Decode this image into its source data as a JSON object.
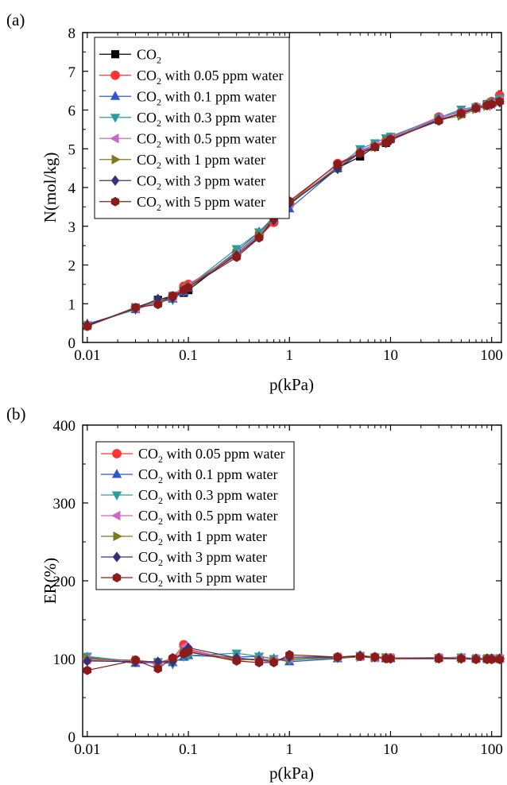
{
  "chart_data": [
    {
      "panel": "(a)",
      "type": "scatter",
      "x_scale": "log",
      "xlabel": "p(kPa)",
      "ylabel": "N(mol/kg)",
      "xlim": [
        0.009,
        125
      ],
      "ylim": [
        0,
        8
      ],
      "x_ticks": [
        0.01,
        0.1,
        1,
        10,
        100
      ],
      "x_tick_labels": [
        "0.01",
        "0.1",
        "1",
        "10",
        "100"
      ],
      "y_ticks": [
        0,
        1,
        2,
        3,
        4,
        5,
        6,
        7,
        8
      ],
      "y_tick_labels": [
        "0",
        "1",
        "2",
        "3",
        "4",
        "5",
        "6",
        "7",
        "8"
      ],
      "legend_position": "top-left",
      "series": [
        {
          "name": "CO2",
          "name_parts": [
            "CO",
            "2",
            " "
          ],
          "marker": "square",
          "color": "#000000",
          "x": [
            0.01,
            0.03,
            0.05,
            0.07,
            0.09,
            0.1,
            0.3,
            0.5,
            0.7,
            1,
            3,
            5,
            7,
            9,
            10,
            30,
            50,
            70,
            90,
            100,
            120
          ],
          "y": [
            0.43,
            0.9,
            1.1,
            1.2,
            1.28,
            1.35,
            2.3,
            2.75,
            3.15,
            3.6,
            4.5,
            4.8,
            5.05,
            5.15,
            5.25,
            5.75,
            5.9,
            6.05,
            6.15,
            6.2,
            6.25
          ]
        },
        {
          "name": "CO2 with 0.05 ppm water",
          "name_parts": [
            "CO",
            "2",
            " with 0.05 ppm water"
          ],
          "marker": "circle",
          "color": "#ff3333",
          "x": [
            0.01,
            0.03,
            0.05,
            0.07,
            0.09,
            0.1,
            0.3,
            0.5,
            0.7,
            1,
            3,
            5,
            7,
            9,
            10,
            30,
            50,
            70,
            90,
            100,
            120
          ],
          "y": [
            0.42,
            0.88,
            1.05,
            1.2,
            1.45,
            1.5,
            2.25,
            2.72,
            3.1,
            3.6,
            4.62,
            4.9,
            5.1,
            5.2,
            5.3,
            5.82,
            5.95,
            6.08,
            6.15,
            6.22,
            6.38
          ]
        },
        {
          "name": "CO2 with 0.1 ppm water",
          "name_parts": [
            "CO",
            "2",
            " with 0.1 ppm water"
          ],
          "marker": "triangle-up",
          "color": "#3355cc",
          "x": [
            0.01,
            0.03,
            0.05,
            0.07,
            0.09,
            0.1,
            0.3,
            0.5,
            0.7,
            1,
            3,
            5,
            7,
            9,
            10,
            30,
            50,
            70,
            90,
            100,
            120
          ],
          "y": [
            0.48,
            0.85,
            1.05,
            1.12,
            1.3,
            1.4,
            2.35,
            2.85,
            3.2,
            3.45,
            4.5,
            4.95,
            5.1,
            5.2,
            5.28,
            5.78,
            5.98,
            6.05,
            6.12,
            6.18,
            6.25
          ]
        },
        {
          "name": "CO2 with 0.3 ppm water",
          "name_parts": [
            "CO",
            "2",
            " with 0.3 ppm water"
          ],
          "marker": "triangle-down",
          "color": "#2a9d9d",
          "x": [
            0.01,
            0.03,
            0.05,
            0.07,
            0.09,
            0.1,
            0.3,
            0.5,
            0.7,
            1,
            3,
            5,
            7,
            9,
            10,
            30,
            50,
            70,
            90,
            100,
            120
          ],
          "y": [
            0.45,
            0.85,
            1.05,
            1.1,
            1.32,
            1.45,
            2.42,
            2.85,
            3.25,
            3.55,
            4.55,
            5.0,
            5.15,
            5.28,
            5.32,
            5.8,
            6.02,
            6.08,
            6.15,
            6.2,
            6.3
          ]
        },
        {
          "name": "CO2 with 0.5 ppm water",
          "name_parts": [
            "CO",
            "2",
            " with 0.5 ppm water"
          ],
          "marker": "triangle-left",
          "color": "#cc66cc",
          "x": [
            0.01,
            0.03,
            0.05,
            0.07,
            0.09,
            0.1,
            0.3,
            0.5,
            0.7,
            1,
            3,
            5,
            7,
            9,
            10,
            30,
            50,
            70,
            90,
            100,
            120
          ],
          "y": [
            0.44,
            0.88,
            1.02,
            1.15,
            1.42,
            1.48,
            2.3,
            2.75,
            3.2,
            3.58,
            4.55,
            4.92,
            5.1,
            5.22,
            5.28,
            5.8,
            5.95,
            6.05,
            6.1,
            6.15,
            6.25
          ]
        },
        {
          "name": "CO2 with  1 ppm water",
          "name_parts": [
            "CO",
            "2",
            " with  1 ppm water"
          ],
          "marker": "triangle-right",
          "color": "#7a7a1f",
          "x": [
            0.01,
            0.03,
            0.05,
            0.07,
            0.09,
            0.1,
            0.3,
            0.5,
            0.7,
            1,
            3,
            5,
            7,
            9,
            10,
            30,
            50,
            70,
            90,
            100,
            120
          ],
          "y": [
            0.44,
            0.9,
            1.05,
            1.18,
            1.38,
            1.45,
            2.3,
            2.8,
            3.2,
            3.6,
            4.52,
            4.9,
            5.05,
            5.2,
            5.25,
            5.75,
            5.85,
            6.02,
            6.1,
            6.18,
            6.22
          ]
        },
        {
          "name": "CO2 with  3 ppm water",
          "name_parts": [
            "CO",
            "2",
            " with  3 ppm water"
          ],
          "marker": "diamond",
          "color": "#333377",
          "x": [
            0.01,
            0.03,
            0.05,
            0.07,
            0.09,
            0.1,
            0.3,
            0.5,
            0.7,
            1,
            3,
            5,
            7,
            9,
            10,
            30,
            50,
            70,
            90,
            100,
            120
          ],
          "y": [
            0.45,
            0.88,
            1.12,
            1.15,
            1.35,
            1.42,
            2.25,
            2.72,
            3.15,
            3.58,
            4.48,
            4.9,
            5.05,
            5.15,
            5.22,
            5.75,
            5.92,
            6.05,
            6.12,
            6.15,
            6.2
          ]
        },
        {
          "name": "CO2 with  5 ppm water",
          "name_parts": [
            "CO",
            "2",
            " with  5 ppm water"
          ],
          "marker": "hexagon",
          "color": "#8b1a1a",
          "x": [
            0.01,
            0.03,
            0.05,
            0.07,
            0.09,
            0.1,
            0.3,
            0.5,
            0.7,
            1,
            3,
            5,
            7,
            9,
            10,
            30,
            50,
            70,
            90,
            100,
            120
          ],
          "y": [
            0.42,
            0.9,
            0.98,
            1.2,
            1.35,
            1.42,
            2.2,
            2.7,
            3.2,
            3.65,
            4.6,
            4.88,
            5.05,
            5.15,
            5.25,
            5.72,
            5.92,
            6.05,
            6.12,
            6.15,
            6.22
          ]
        }
      ]
    },
    {
      "panel": "(b)",
      "type": "scatter",
      "x_scale": "log",
      "xlabel": "p(kPa)",
      "ylabel": "ER(%)",
      "xlim": [
        0.009,
        125
      ],
      "ylim": [
        0,
        400
      ],
      "x_ticks": [
        0.01,
        0.1,
        1,
        10,
        100
      ],
      "x_tick_labels": [
        "0.01",
        "0.1",
        "1",
        "10",
        "100"
      ],
      "y_ticks": [
        0,
        100,
        200,
        300,
        400
      ],
      "y_tick_labels": [
        "0",
        "100",
        "200",
        "300",
        "400"
      ],
      "legend_position": "top-left",
      "series": [
        {
          "name": "CO2 with 0.05 ppm water",
          "name_parts": [
            "CO",
            "2",
            " with 0.05 ppm water"
          ],
          "marker": "circle",
          "color": "#ff3333",
          "x": [
            0.01,
            0.03,
            0.05,
            0.07,
            0.09,
            0.1,
            0.3,
            0.5,
            0.7,
            1,
            3,
            5,
            7,
            9,
            10,
            30,
            50,
            70,
            90,
            100,
            120
          ],
          "y": [
            98,
            98,
            95,
            100,
            118,
            112,
            98,
            100,
            98,
            100,
            102,
            103,
            102,
            101,
            101,
            101,
            101,
            100,
            100,
            100,
            100
          ]
        },
        {
          "name": "CO2 with 0.1 ppm water",
          "name_parts": [
            "CO",
            "2",
            " with 0.1 ppm water"
          ],
          "marker": "triangle-up",
          "color": "#3355cc",
          "x": [
            0.01,
            0.03,
            0.05,
            0.07,
            0.09,
            0.1,
            0.3,
            0.5,
            0.7,
            1,
            3,
            5,
            7,
            9,
            10,
            30,
            50,
            70,
            90,
            100,
            120
          ],
          "y": [
            102,
            94,
            95,
            95,
            102,
            104,
            102,
            103,
            100,
            96,
            100,
            103,
            101,
            100,
            100,
            101,
            101,
            100,
            100,
            100,
            100
          ]
        },
        {
          "name": "CO2 with 0.3 ppm water",
          "name_parts": [
            "CO",
            "2",
            " with 0.3 ppm water"
          ],
          "marker": "triangle-down",
          "color": "#2a9d9d",
          "x": [
            0.01,
            0.03,
            0.05,
            0.07,
            0.09,
            0.1,
            0.3,
            0.5,
            0.7,
            1,
            3,
            5,
            7,
            9,
            10,
            30,
            50,
            70,
            90,
            100,
            120
          ],
          "y": [
            103,
            96,
            96,
            93,
            103,
            104,
            107,
            103,
            100,
            98,
            101,
            104,
            102,
            102,
            101,
            101,
            102,
            100,
            100,
            100,
            100
          ]
        },
        {
          "name": "CO2 with 0.5 ppm water",
          "name_parts": [
            "CO",
            "2",
            " with 0.5 ppm water"
          ],
          "marker": "triangle-left",
          "color": "#cc66cc",
          "x": [
            0.01,
            0.03,
            0.05,
            0.07,
            0.09,
            0.1,
            0.3,
            0.5,
            0.7,
            1,
            3,
            5,
            7,
            9,
            10,
            30,
            50,
            70,
            90,
            100,
            120
          ],
          "y": [
            100,
            97,
            93,
            98,
            115,
            110,
            100,
            99,
            98,
            100,
            102,
            103,
            101,
            101,
            101,
            101,
            101,
            100,
            100,
            100,
            100
          ]
        },
        {
          "name": "CO2 with  1 ppm water",
          "name_parts": [
            "CO",
            "2",
            " with  1 ppm water"
          ],
          "marker": "triangle-right",
          "color": "#7a7a1f",
          "x": [
            0.01,
            0.03,
            0.05,
            0.07,
            0.09,
            0.1,
            0.3,
            0.5,
            0.7,
            1,
            3,
            5,
            7,
            9,
            10,
            30,
            50,
            70,
            90,
            100,
            120
          ],
          "y": [
            100,
            98,
            95,
            98,
            110,
            108,
            100,
            98,
            98,
            100,
            101,
            102,
            101,
            101,
            100,
            100,
            100,
            100,
            100,
            100,
            100
          ]
        },
        {
          "name": "CO2 with  3 ppm water",
          "name_parts": [
            "CO",
            "2",
            " with  3 ppm water"
          ],
          "marker": "diamond",
          "color": "#333377",
          "x": [
            0.01,
            0.03,
            0.05,
            0.07,
            0.09,
            0.1,
            0.3,
            0.5,
            0.7,
            1,
            3,
            5,
            7,
            9,
            10,
            30,
            50,
            70,
            90,
            100,
            120
          ],
          "y": [
            97,
            96,
            96,
            96,
            108,
            114,
            101,
            98,
            96,
            102,
            102,
            104,
            102,
            101,
            100,
            101,
            100,
            100,
            100,
            100,
            100
          ]
        },
        {
          "name": "CO2 with  5 ppm water",
          "name_parts": [
            "CO",
            "2",
            " with  5 ppm water"
          ],
          "marker": "hexagon",
          "color": "#8b1a1a",
          "x": [
            0.01,
            0.03,
            0.05,
            0.07,
            0.09,
            0.1,
            0.3,
            0.5,
            0.7,
            1,
            3,
            5,
            7,
            9,
            10,
            30,
            50,
            70,
            90,
            100,
            120
          ],
          "y": [
            85,
            98,
            87,
            101,
            106,
            109,
            97,
            95,
            95,
            105,
            102,
            103,
            102,
            100,
            100,
            100,
            100,
            99,
            99,
            99,
            99
          ]
        }
      ]
    }
  ]
}
